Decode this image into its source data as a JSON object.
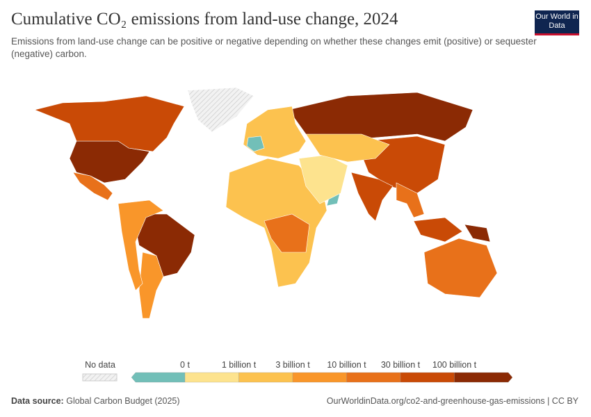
{
  "header": {
    "title": "Cumulative CO₂ emissions from land-use change, 2024",
    "subtitle": "Emissions from land-use change can be positive or negative depending on whether these changes emit (positive) or sequester (negative) carbon.",
    "logo_text": "Our World in Data"
  },
  "legend": {
    "no_data_label": "No data",
    "bins": [
      {
        "label": "0 t",
        "color": "#72bfb8"
      },
      {
        "label": "1 billion t",
        "color": "#fde38e"
      },
      {
        "label": "3 billion t",
        "color": "#fcc24f"
      },
      {
        "label": "10 billion t",
        "color": "#f9962a"
      },
      {
        "label": "30 billion t",
        "color": "#e8711a"
      },
      {
        "label": "100 billion t",
        "color": "#c94a06"
      }
    ],
    "colors": [
      "#72bfb8",
      "#fde38e",
      "#fcc24f",
      "#f9962a",
      "#e8711a",
      "#c94a06",
      "#8b2a04"
    ]
  },
  "footer": {
    "source_label": "Data source:",
    "source": "Global Carbon Budget (2025)",
    "url": "OurWorldinData.org/co2-and-greenhouse-gas-emissions | CC BY"
  },
  "regions": [
    {
      "name": "United States",
      "bin": 6
    },
    {
      "name": "Canada",
      "bin": 5
    },
    {
      "name": "Mexico",
      "bin": 4
    },
    {
      "name": "Brazil",
      "bin": 6
    },
    {
      "name": "Argentina",
      "bin": 3
    },
    {
      "name": "South America other",
      "bin": 3
    },
    {
      "name": "Russia",
      "bin": 6
    },
    {
      "name": "China",
      "bin": 5
    },
    {
      "name": "India",
      "bin": 5
    },
    {
      "name": "Indonesia",
      "bin": 5
    },
    {
      "name": "Australia",
      "bin": 4
    },
    {
      "name": "Europe",
      "bin": 2
    },
    {
      "name": "France",
      "bin": 0
    },
    {
      "name": "Oman",
      "bin": 0
    },
    {
      "name": "Africa",
      "bin": 2
    },
    {
      "name": "Central Africa",
      "bin": 4
    },
    {
      "name": "Middle East",
      "bin": 1
    },
    {
      "name": "Kazakhstan region",
      "bin": 2
    },
    {
      "name": "Southeast Asia",
      "bin": 4
    },
    {
      "name": "Papua New Guinea",
      "bin": 6
    },
    {
      "name": "Greenland",
      "bin": -1
    }
  ]
}
